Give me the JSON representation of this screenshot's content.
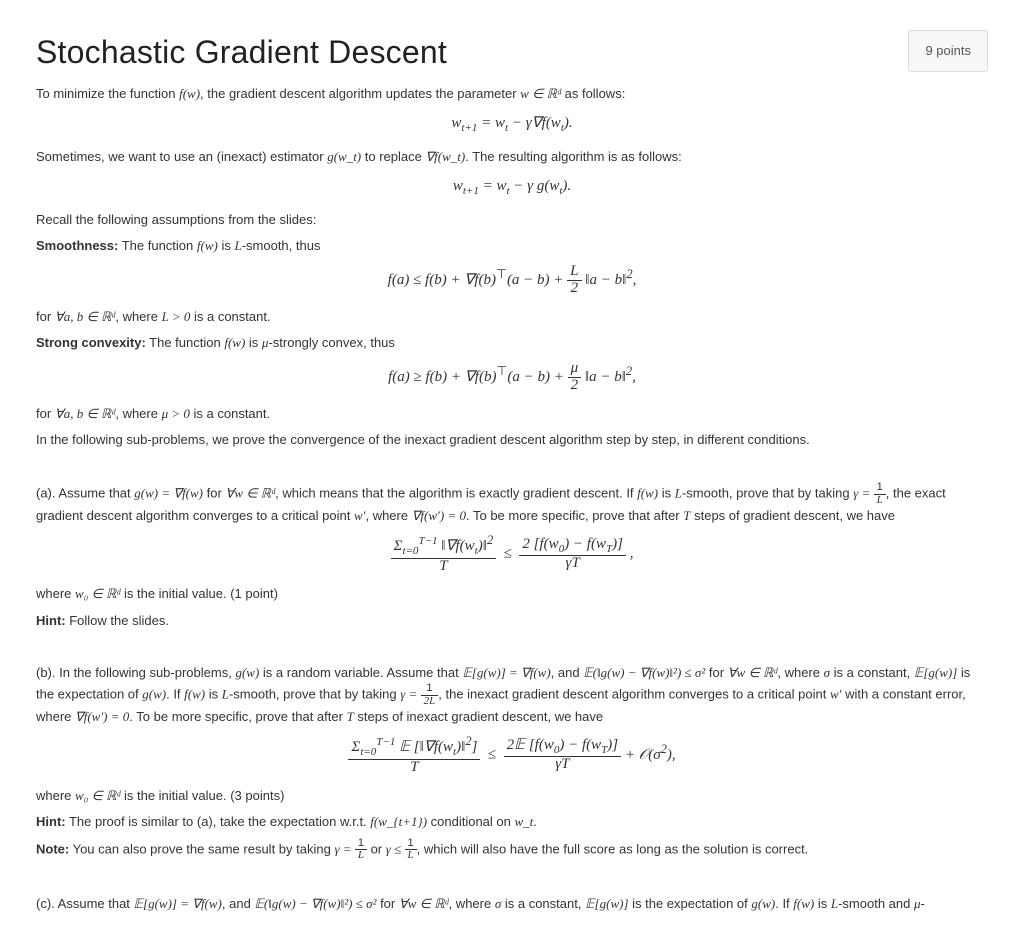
{
  "header": {
    "title": "Stochastic Gradient Descent",
    "points": "9 points"
  },
  "intro": {
    "p1a": "To minimize the function ",
    "p1b": ", the gradient descent algorithm updates the parameter ",
    "p1c": " as follows:",
    "eq1": "w_{t+1} = w_t − γ∇f(w_t).",
    "p2a": "Sometimes, we want to use an (inexact) estimator ",
    "p2b": " to replace ",
    "p2c": ". The resulting algorithm is as follows:",
    "eq2": "w_{t+1} = w_t − γ g(w_t).",
    "recall": "Recall the following assumptions from the slides:"
  },
  "smooth": {
    "label": "Smoothness:",
    "txt1": " The function ",
    "txt2": " is ",
    "txt3": "-smooth, thus",
    "eq": "f(a) ≤ f(b) + ∇f(b)ᵀ(a − b) + (L/2)‖a − b‖²,",
    "after1": "for ",
    "after2": ", where ",
    "after3": " is a constant."
  },
  "convex": {
    "label": "Strong convexity:",
    "txt1": " The function ",
    "txt2": " is ",
    "txt3": "-strongly convex, thus",
    "eq": "f(a) ≥ f(b) + ∇f(b)ᵀ(a − b) + (μ/2)‖a − b‖²,",
    "after1": "for ",
    "after2": ", where ",
    "after3": " is a constant.",
    "outro": "In the following sub-problems, we prove the convergence of the inexact gradient descent algorithm step by step, in different conditions."
  },
  "a": {
    "p1": "(a). Assume that ",
    "p2": " for ",
    "p3": ", which means that the algorithm is exactly gradient descent. If ",
    "p4": " is ",
    "p5": "-smooth, prove that by taking ",
    "p6": ", the exact gradient descent algorithm converges to a critical point ",
    "p7": ", where ",
    "p8": ". To be more specific, prove that after ",
    "p9": " steps of gradient descent, we have",
    "eq": "(Σ_{t=0}^{T−1} ‖∇f(w_t)‖²) / T  ≤  2[f(w₀) − f(w_T)] / (γT),",
    "tail1": "where ",
    "tail2": " is the initial value. (1 point)",
    "hintlbl": "Hint:",
    "hint": " Follow the slides."
  },
  "b": {
    "p1": "(b). In the following sub-problems, ",
    "p2": " is a random variable. Assume that ",
    "p3": ", and ",
    "p4": " for ",
    "p5": ", where ",
    "p6": " is a constant, ",
    "p7": " is the expectation of ",
    "p8": ". If ",
    "p9": " is ",
    "p10": "-smooth, prove that by taking ",
    "p11": ", the inexact gradient descent algorithm converges to a critical point ",
    "p12": " with a constant error, where ",
    "p13": ". To be more specific, prove that after ",
    "p14": " steps of inexact gradient descent, we have",
    "eq": "(Σ_{t=0}^{T−1} 𝔼[‖∇f(w_t)‖²]) / T  ≤  2𝔼[f(w₀) − f(w_T)] / (γT) + 𝒪(σ²),",
    "tail1": "where ",
    "tail2": " is the initial value. (3 points)",
    "hintlbl": "Hint:",
    "hint": " The proof is similar to (a), take the expectation w.r.t. ",
    "hint2": " conditional on ",
    "notelbl": "Note:",
    "note1": " You can also prove the same result by taking ",
    "note2": " or ",
    "note3": ", which will also have the full score as long as the solution is correct."
  },
  "c": {
    "p1": "(c). Assume that ",
    "p2": ", and ",
    "p3": " for ",
    "p4": ", where ",
    "p5": " is a constant, ",
    "p6": " is the expectation of ",
    "p7": ". If ",
    "p8": " is ",
    "p9": "-smooth and ",
    "p10": "-"
  },
  "sym": {
    "fw": "f(w)",
    "wRd": "w ∈ ℝᵈ",
    "gwt": "g(w_t)",
    "gradfwt": "∇f(w_t)",
    "L": "L",
    "mu": "μ",
    "abRd": "∀a, b ∈ ℝᵈ",
    "Lgt0": "L > 0",
    "mugt0": "μ > 0",
    "gweqgrad": "g(w) = ∇f(w)",
    "allwRd": "∀w ∈ ℝᵈ",
    "gamma1L": "γ = 1/L",
    "gamma12L": "γ = 1/(2L)",
    "gammalt1L": "γ ≤ 1/L",
    "wprime": "w′",
    "gradfwprime0": "∇f(w′) = 0",
    "T": "T",
    "w0Rd": "w₀ ∈ ℝᵈ",
    "gw": "g(w)",
    "Egw": "𝔼[g(w)] = ∇f(w)",
    "Enorm": "𝔼(‖g(w) − ∇f(w)‖²) ≤ σ²",
    "sigma": "σ",
    "Egwlabel": "𝔼[g(w)]",
    "fwtnext": "f(w_{t+1})",
    "wt": "w_t"
  }
}
